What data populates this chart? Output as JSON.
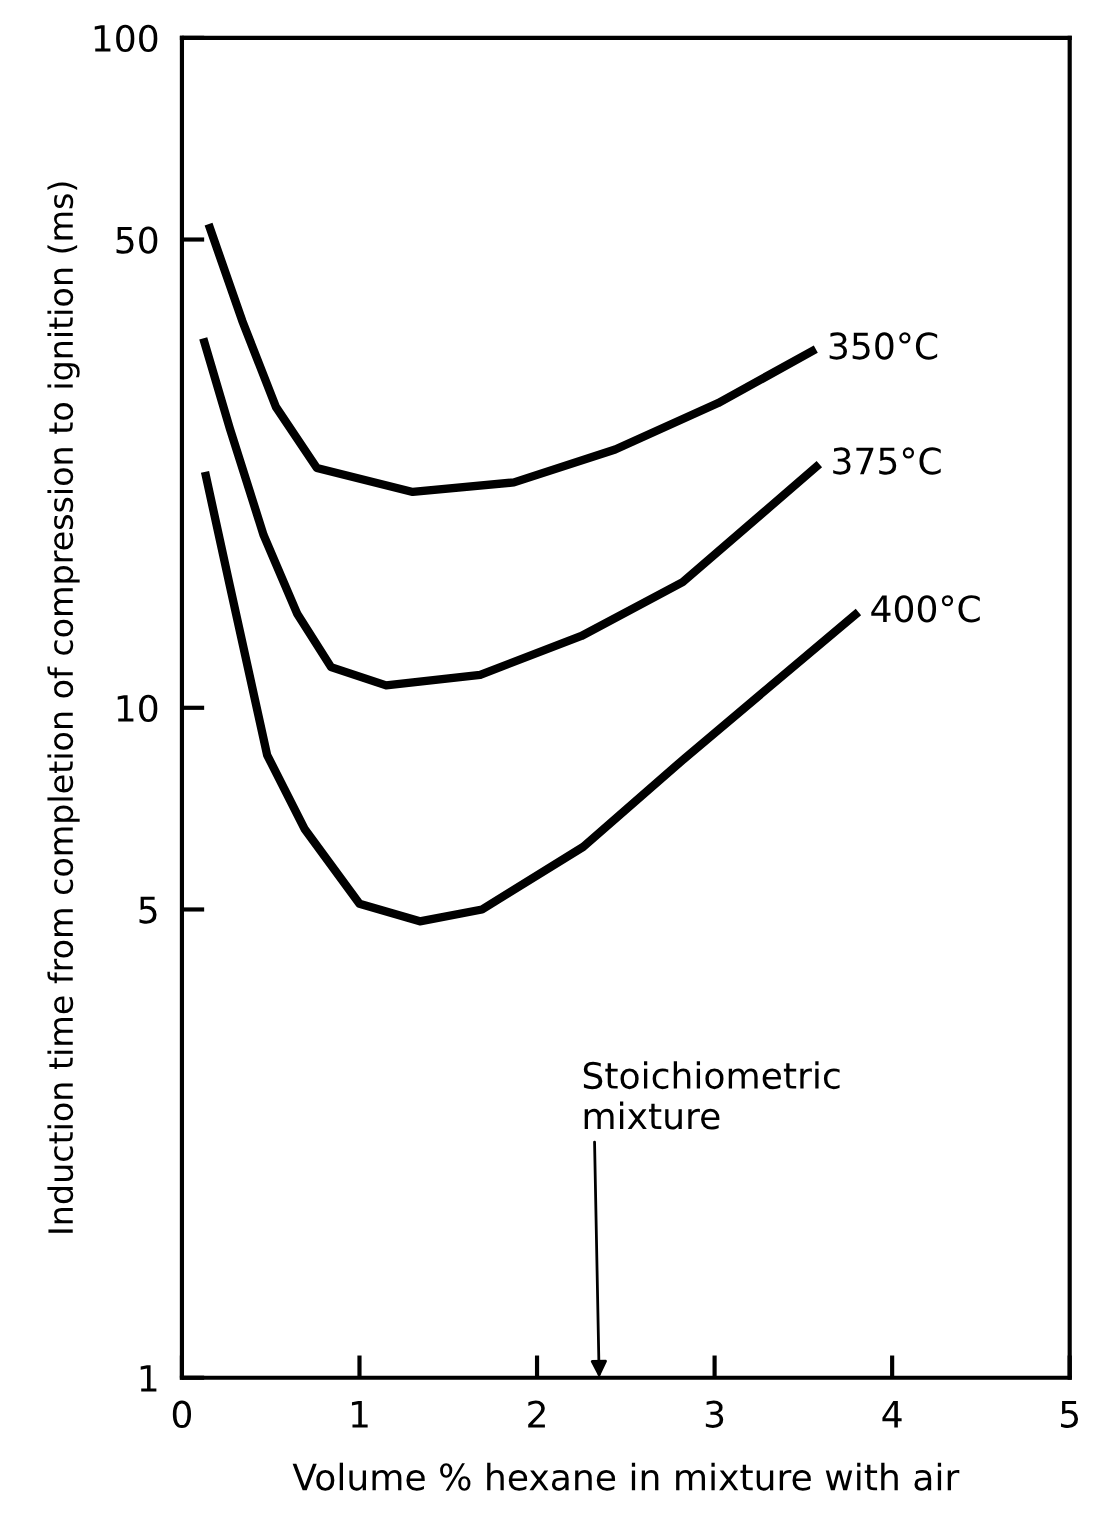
{
  "chart_data": {
    "type": "line",
    "xlabel": "Volume % hexane in mixture with air",
    "ylabel": "Induction time from completion of compression to ignition (ms)",
    "log": "y",
    "xlim": [
      0,
      5
    ],
    "xticks": [
      0,
      1,
      2,
      3,
      4,
      5
    ],
    "ylim": [
      1,
      100
    ],
    "yticks": [
      1,
      5,
      10,
      50,
      100
    ],
    "grid": false,
    "marker": "none",
    "line_style": "solid",
    "series": [
      {
        "color": "#000000",
        "x": [
          0.15,
          0.34,
          0.53,
          0.76,
          1.3,
          1.87,
          2.44,
          3.02,
          3.57
        ],
        "values": [
          52.7,
          37.8,
          28.1,
          22.8,
          21.0,
          21.7,
          24.3,
          28.5,
          34.3
        ]
      },
      {
        "color": "#000000",
        "x": [
          0.12,
          0.27,
          0.46,
          0.65,
          0.84,
          1.15,
          1.68,
          2.25,
          2.82,
          3.59
        ],
        "values": [
          35.6,
          26.1,
          18.1,
          13.8,
          11.5,
          10.8,
          11.2,
          12.8,
          15.4,
          23.1
        ]
      },
      {
        "color": "#000000",
        "x": [
          0.13,
          0.27,
          0.48,
          0.69,
          1.0,
          1.34,
          1.69,
          2.26,
          2.83,
          3.81
        ],
        "values": [
          22.5,
          15.2,
          8.5,
          6.6,
          5.1,
          4.8,
          5.0,
          6.2,
          8.4,
          13.9
        ]
      }
    ],
    "annotations": [
      {
        "text": "350°C",
        "x": 3.57,
        "y": 34.3
      },
      {
        "text": "375°C",
        "x": 3.59,
        "y": 23.1
      },
      {
        "text": "400°C",
        "x": 3.81,
        "y": 13.9
      },
      "Stoichiometric\nmixture"
    ]
  }
}
